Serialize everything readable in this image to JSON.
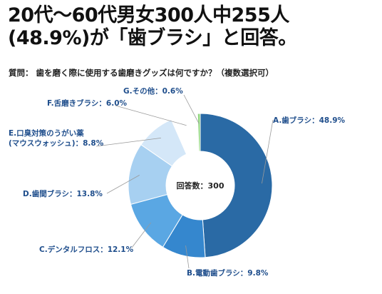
{
  "headline": {
    "line1": "20代〜60代男女300人中255人",
    "line2": "(48.9%)が「歯ブラシ」と回答。"
  },
  "question": "質問： 歯を磨く際に使用する歯磨きグッズは何ですか？（複数選択可）",
  "chart_data": {
    "type": "pie",
    "style": "donut",
    "center_label": "回答数：300",
    "slices": [
      {
        "label": "A.歯ブラシ：48.9%",
        "value": 48.9,
        "color": "#2a6aa5"
      },
      {
        "label": "B.電動歯ブラシ：9.8%",
        "value": 9.8,
        "color": "#3587ce"
      },
      {
        "label": "C.デンタルフロス：12.1%",
        "value": 12.1,
        "color": "#5aa7e3"
      },
      {
        "label": "D.歯間ブラシ：13.8%",
        "value": 13.8,
        "color": "#a7d0f1"
      },
      {
        "label": [
          "E.口臭対策のうがい薬",
          "(マウスウォッシュ)：8.8%"
        ],
        "value": 8.8,
        "color": "#d4e7f8"
      },
      {
        "label": "F.舌磨きブラシ：6.0%",
        "value": 6.0,
        "color": "#ffffff"
      },
      {
        "label": "G.その他：0.6%",
        "value": 0.6,
        "color": "#8fd67e"
      }
    ]
  },
  "colors": {
    "label_text": "#1f4e8c",
    "leader_line": "#999999"
  }
}
